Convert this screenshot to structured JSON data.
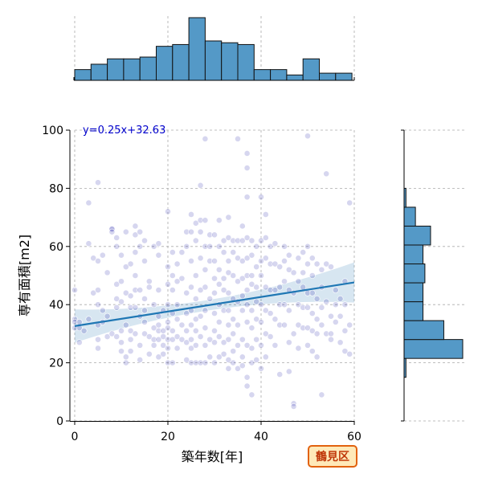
{
  "chart_data": {
    "type": "scatter",
    "subtype": "joint-plot with marginal histograms and linear regression",
    "xlabel": "築年数[年]",
    "ylabel": "専有面積[m2]",
    "xlim": [
      0,
      60
    ],
    "ylim": [
      0,
      100
    ],
    "x_ticks": [
      0,
      20,
      40,
      60
    ],
    "y_ticks": [
      0,
      20,
      40,
      60,
      80,
      100
    ],
    "grid": true,
    "regression": {
      "label": "y=0.25x+32.63",
      "slope": 0.25,
      "intercept": 32.63,
      "line_color": "#1f77b4",
      "label_color": "#0000cc"
    },
    "badge": "鶴見区",
    "point_color": "#1a1aa8",
    "hist_color": "#5499c7",
    "top_histogram": {
      "bin_edges": [
        0,
        3.5,
        7,
        10.5,
        14,
        17.5,
        21,
        24.5,
        28,
        31.5,
        35,
        38.5,
        42,
        45.5,
        49,
        52.5,
        56,
        59.5
      ],
      "heights": [
        6,
        9,
        12,
        12,
        13,
        19,
        20,
        35,
        22,
        21,
        20,
        6,
        6,
        3,
        12,
        4,
        4
      ]
    },
    "right_histogram": {
      "bin_edges": [
        15,
        21.5,
        28,
        34.5,
        41,
        47.5,
        54,
        60.5,
        67,
        73.5,
        80
      ],
      "heights": [
        1,
        31,
        21,
        10,
        10,
        11,
        10,
        14,
        6,
        1
      ]
    },
    "points": [
      [
        0,
        45
      ],
      [
        0,
        35
      ],
      [
        0,
        34
      ],
      [
        0,
        32
      ],
      [
        1,
        34
      ],
      [
        1,
        32
      ],
      [
        1,
        27
      ],
      [
        2,
        31
      ],
      [
        3,
        75
      ],
      [
        3,
        61
      ],
      [
        3,
        35
      ],
      [
        4,
        56
      ],
      [
        4,
        44
      ],
      [
        5,
        82
      ],
      [
        5,
        55
      ],
      [
        5,
        45
      ],
      [
        5,
        40
      ],
      [
        5,
        33
      ],
      [
        5,
        28
      ],
      [
        5,
        25
      ],
      [
        6,
        57
      ],
      [
        6,
        38
      ],
      [
        6,
        34
      ],
      [
        7,
        51
      ],
      [
        7,
        36
      ],
      [
        7,
        29
      ],
      [
        8,
        66
      ],
      [
        8,
        66
      ],
      [
        8,
        65
      ],
      [
        8,
        30
      ],
      [
        9,
        63
      ],
      [
        9,
        60
      ],
      [
        9,
        47
      ],
      [
        9,
        42
      ],
      [
        9,
        39
      ],
      [
        9,
        29
      ],
      [
        10,
        57
      ],
      [
        10,
        48
      ],
      [
        10,
        41
      ],
      [
        10,
        31
      ],
      [
        10,
        27
      ],
      [
        10,
        24
      ],
      [
        11,
        65
      ],
      [
        11,
        53
      ],
      [
        11,
        44
      ],
      [
        11,
        33
      ],
      [
        11,
        22
      ],
      [
        11,
        20
      ],
      [
        12,
        54
      ],
      [
        12,
        43
      ],
      [
        12,
        39
      ],
      [
        12,
        31
      ],
      [
        12,
        28
      ],
      [
        12,
        24
      ],
      [
        13,
        67
      ],
      [
        13,
        64
      ],
      [
        13,
        58
      ],
      [
        13,
        50
      ],
      [
        13,
        45
      ],
      [
        13,
        39
      ],
      [
        13,
        30
      ],
      [
        14,
        65
      ],
      [
        14,
        60
      ],
      [
        14,
        45
      ],
      [
        14,
        36
      ],
      [
        14,
        26
      ],
      [
        14,
        21
      ],
      [
        15,
        62
      ],
      [
        15,
        55
      ],
      [
        15,
        42
      ],
      [
        15,
        38
      ],
      [
        15,
        34
      ],
      [
        15,
        30
      ],
      [
        16,
        48
      ],
      [
        16,
        46
      ],
      [
        16,
        29
      ],
      [
        16,
        23
      ],
      [
        17,
        60
      ],
      [
        17,
        40
      ],
      [
        17,
        32
      ],
      [
        17,
        28
      ],
      [
        17,
        26
      ],
      [
        18,
        61
      ],
      [
        18,
        57
      ],
      [
        18,
        45
      ],
      [
        18,
        36
      ],
      [
        18,
        33
      ],
      [
        18,
        31
      ],
      [
        18,
        28
      ],
      [
        18,
        22
      ],
      [
        19,
        38
      ],
      [
        19,
        31
      ],
      [
        19,
        29
      ],
      [
        19,
        26
      ],
      [
        19,
        23
      ],
      [
        20,
        72
      ],
      [
        20,
        53
      ],
      [
        20,
        47
      ],
      [
        20,
        40
      ],
      [
        20,
        34
      ],
      [
        20,
        32
      ],
      [
        20,
        28
      ],
      [
        20,
        25
      ],
      [
        20,
        20
      ],
      [
        21,
        58
      ],
      [
        21,
        50
      ],
      [
        21,
        45
      ],
      [
        21,
        37
      ],
      [
        21,
        31
      ],
      [
        21,
        28
      ],
      [
        21,
        20
      ],
      [
        22,
        54
      ],
      [
        22,
        48
      ],
      [
        22,
        40
      ],
      [
        22,
        35
      ],
      [
        22,
        29
      ],
      [
        22,
        25
      ],
      [
        23,
        58
      ],
      [
        23,
        49
      ],
      [
        23,
        33
      ],
      [
        23,
        28
      ],
      [
        24,
        65
      ],
      [
        24,
        60
      ],
      [
        24,
        44
      ],
      [
        24,
        37
      ],
      [
        24,
        31
      ],
      [
        24,
        27
      ],
      [
        24,
        21
      ],
      [
        25,
        71
      ],
      [
        25,
        65
      ],
      [
        25,
        55
      ],
      [
        25,
        46
      ],
      [
        25,
        38
      ],
      [
        25,
        33
      ],
      [
        25,
        28
      ],
      [
        25,
        25
      ],
      [
        25,
        20
      ],
      [
        26,
        68
      ],
      [
        26,
        62
      ],
      [
        26,
        50
      ],
      [
        26,
        42
      ],
      [
        26,
        35
      ],
      [
        26,
        31
      ],
      [
        26,
        26
      ],
      [
        26,
        20
      ],
      [
        27,
        81
      ],
      [
        27,
        69
      ],
      [
        27,
        65
      ],
      [
        27,
        56
      ],
      [
        27,
        45
      ],
      [
        27,
        36
      ],
      [
        27,
        29
      ],
      [
        27,
        20
      ],
      [
        28,
        97
      ],
      [
        28,
        69
      ],
      [
        28,
        60
      ],
      [
        28,
        52
      ],
      [
        28,
        46
      ],
      [
        28,
        38
      ],
      [
        28,
        32
      ],
      [
        28,
        26
      ],
      [
        28,
        20
      ],
      [
        29,
        64
      ],
      [
        29,
        60
      ],
      [
        29,
        55
      ],
      [
        29,
        42
      ],
      [
        29,
        28
      ],
      [
        29,
        22
      ],
      [
        30,
        64
      ],
      [
        30,
        55
      ],
      [
        30,
        49
      ],
      [
        30,
        44
      ],
      [
        30,
        37
      ],
      [
        30,
        31
      ],
      [
        30,
        27
      ],
      [
        30,
        20
      ],
      [
        31,
        69
      ],
      [
        31,
        60
      ],
      [
        31,
        52
      ],
      [
        31,
        47
      ],
      [
        31,
        40
      ],
      [
        31,
        34
      ],
      [
        31,
        29
      ],
      [
        31,
        22
      ],
      [
        32,
        62
      ],
      [
        32,
        58
      ],
      [
        32,
        49
      ],
      [
        32,
        45
      ],
      [
        32,
        38
      ],
      [
        32,
        27
      ],
      [
        32,
        23
      ],
      [
        33,
        70
      ],
      [
        33,
        63
      ],
      [
        33,
        55
      ],
      [
        33,
        51
      ],
      [
        33,
        44
      ],
      [
        33,
        38
      ],
      [
        33,
        33
      ],
      [
        33,
        28
      ],
      [
        33,
        21
      ],
      [
        33,
        18
      ],
      [
        34,
        62
      ],
      [
        34,
        58
      ],
      [
        34,
        50
      ],
      [
        34,
        42
      ],
      [
        34,
        35
      ],
      [
        34,
        30
      ],
      [
        34,
        24
      ],
      [
        34,
        20
      ],
      [
        35,
        97
      ],
      [
        35,
        62
      ],
      [
        35,
        56
      ],
      [
        35,
        48
      ],
      [
        35,
        41
      ],
      [
        35,
        33
      ],
      [
        35,
        26
      ],
      [
        35,
        18
      ],
      [
        36,
        67
      ],
      [
        36,
        62
      ],
      [
        36,
        55
      ],
      [
        36,
        49
      ],
      [
        36,
        43
      ],
      [
        36,
        38
      ],
      [
        36,
        28
      ],
      [
        36,
        22
      ],
      [
        36,
        19
      ],
      [
        37,
        92
      ],
      [
        37,
        87
      ],
      [
        37,
        77
      ],
      [
        37,
        63
      ],
      [
        37,
        56
      ],
      [
        37,
        50
      ],
      [
        37,
        45
      ],
      [
        37,
        40
      ],
      [
        37,
        34
      ],
      [
        37,
        26
      ],
      [
        37,
        15
      ],
      [
        37,
        12
      ],
      [
        38,
        62
      ],
      [
        38,
        57
      ],
      [
        38,
        50
      ],
      [
        38,
        47
      ],
      [
        38,
        38
      ],
      [
        38,
        32
      ],
      [
        38,
        25
      ],
      [
        38,
        20
      ],
      [
        38,
        9
      ],
      [
        39,
        60
      ],
      [
        39,
        53
      ],
      [
        39,
        46
      ],
      [
        39,
        41
      ],
      [
        39,
        35
      ],
      [
        39,
        28
      ],
      [
        39,
        21
      ],
      [
        40,
        77
      ],
      [
        40,
        62
      ],
      [
        40,
        55
      ],
      [
        40,
        50
      ],
      [
        40,
        40
      ],
      [
        40,
        34
      ],
      [
        40,
        26
      ],
      [
        40,
        18
      ],
      [
        41,
        71
      ],
      [
        41,
        63
      ],
      [
        41,
        56
      ],
      [
        41,
        46
      ],
      [
        41,
        38
      ],
      [
        41,
        30
      ],
      [
        41,
        22
      ],
      [
        42,
        60
      ],
      [
        42,
        54
      ],
      [
        42,
        45
      ],
      [
        42,
        37
      ],
      [
        42,
        29
      ],
      [
        43,
        61
      ],
      [
        43,
        54
      ],
      [
        43,
        45
      ],
      [
        43,
        35
      ],
      [
        43,
        26
      ],
      [
        44,
        53
      ],
      [
        44,
        46
      ],
      [
        44,
        40
      ],
      [
        44,
        33
      ],
      [
        44,
        16
      ],
      [
        45,
        60
      ],
      [
        45,
        55
      ],
      [
        45,
        48
      ],
      [
        45,
        40
      ],
      [
        45,
        33
      ],
      [
        46,
        57
      ],
      [
        46,
        52
      ],
      [
        46,
        45
      ],
      [
        46,
        38
      ],
      [
        46,
        27
      ],
      [
        46,
        17
      ],
      [
        47,
        51
      ],
      [
        47,
        44
      ],
      [
        47,
        30
      ],
      [
        47,
        6
      ],
      [
        47,
        5
      ],
      [
        48,
        56
      ],
      [
        48,
        48
      ],
      [
        48,
        40
      ],
      [
        48,
        33
      ],
      [
        48,
        25
      ],
      [
        49,
        58
      ],
      [
        49,
        51
      ],
      [
        49,
        46
      ],
      [
        49,
        39
      ],
      [
        49,
        32
      ],
      [
        50,
        98
      ],
      [
        50,
        60
      ],
      [
        50,
        54
      ],
      [
        50,
        44
      ],
      [
        50,
        39
      ],
      [
        50,
        32
      ],
      [
        50,
        26
      ],
      [
        51,
        56
      ],
      [
        51,
        50
      ],
      [
        51,
        44
      ],
      [
        51,
        37
      ],
      [
        51,
        31
      ],
      [
        51,
        24
      ],
      [
        52,
        54
      ],
      [
        52,
        42
      ],
      [
        52,
        35
      ],
      [
        52,
        30
      ],
      [
        52,
        22
      ],
      [
        53,
        9
      ],
      [
        53,
        52
      ],
      [
        53,
        46
      ],
      [
        53,
        39
      ],
      [
        53,
        33
      ],
      [
        54,
        85
      ],
      [
        54,
        54
      ],
      [
        54,
        41
      ],
      [
        54,
        30
      ],
      [
        55,
        53
      ],
      [
        55,
        36
      ],
      [
        55,
        30
      ],
      [
        55,
        28
      ],
      [
        56,
        45
      ],
      [
        56,
        40
      ],
      [
        56,
        34
      ],
      [
        57,
        42
      ],
      [
        57,
        36
      ],
      [
        57,
        27
      ],
      [
        58,
        48
      ],
      [
        58,
        40
      ],
      [
        58,
        31
      ],
      [
        58,
        24
      ],
      [
        59,
        75
      ],
      [
        59,
        33
      ],
      [
        59,
        23
      ]
    ]
  }
}
